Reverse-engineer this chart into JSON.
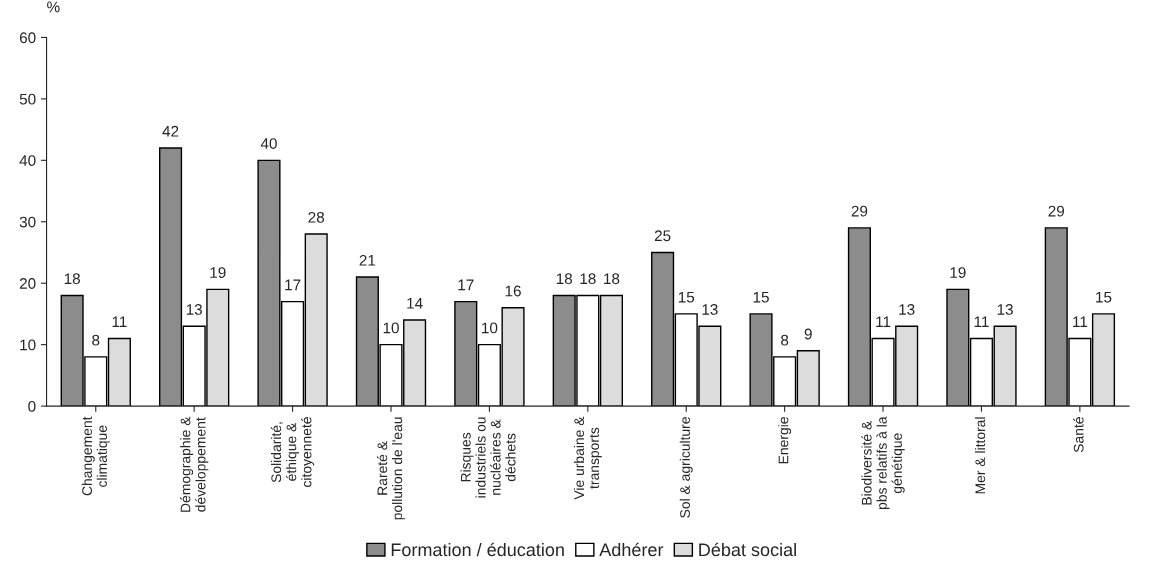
{
  "chart_data": {
    "type": "bar",
    "ylabel": "%",
    "categories": [
      "Changement\nclimatique",
      "Démographie &\ndéveloppement",
      "Solidarité,\néthique &\ncitoyenneté",
      "Rareté &\npollution de l'eau",
      "Risques\nindustriels ou\nnucléaires &\ndéchets",
      "Vie urbaine &\ntransports",
      "Sol & agriculture",
      "Energie",
      "Biodiversité &\npbs relatifs à la\ngénétique",
      "Mer & littoral",
      "Santé"
    ],
    "series": [
      {
        "name": "Formation / éducation",
        "color": "#8c8c8c",
        "values": [
          18,
          42,
          40,
          21,
          17,
          18,
          25,
          15,
          29,
          19,
          29
        ]
      },
      {
        "name": "Adhérer",
        "color": "#ffffff",
        "values": [
          8,
          13,
          17,
          10,
          10,
          18,
          15,
          8,
          11,
          11,
          11
        ]
      },
      {
        "name": "Débat social",
        "color": "#dcdcdc",
        "values": [
          11,
          19,
          28,
          14,
          16,
          18,
          13,
          9,
          13,
          13,
          15
        ]
      }
    ],
    "ylim": [
      0,
      60
    ],
    "yticks": [
      0,
      10,
      20,
      30,
      40,
      50,
      60
    ],
    "data_labels": true,
    "grid": false,
    "legend": "bottom"
  }
}
